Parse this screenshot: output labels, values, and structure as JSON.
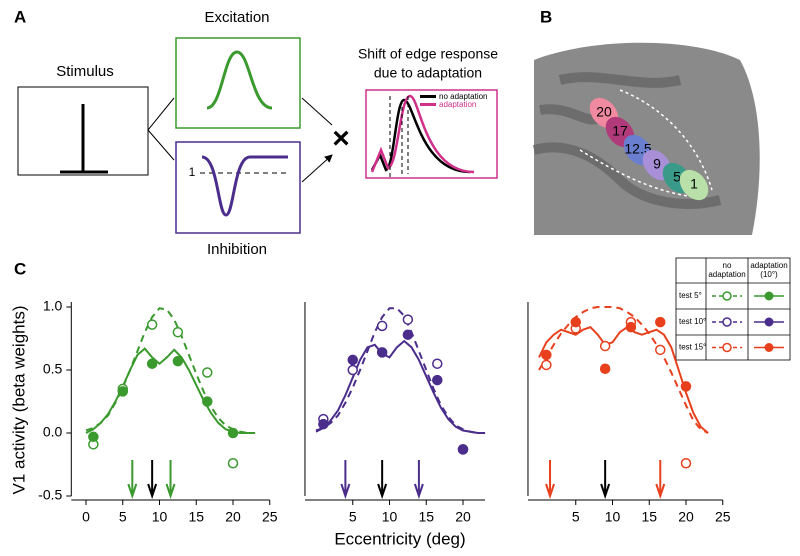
{
  "panel_a": {
    "label": "A",
    "stimulus": "Stimulus",
    "excitation": "Excitation",
    "inhibition": "Inhibition",
    "inhibition_level": "1",
    "operator": "×",
    "shift_title_1": "Shift of edge response",
    "shift_title_2": "due to adaptation",
    "legend_no": "no adaptation",
    "legend_ad": "adaptation"
  },
  "panel_b": {
    "label": "B",
    "regions": [
      "20",
      "17",
      "12.5",
      "9",
      "5",
      "1"
    ]
  },
  "panel_c": {
    "label": "C",
    "ylabel": "V1 activity (beta weights)",
    "xlabel": "Eccentricity (deg)",
    "legend": {
      "columns": [
        "no adaptation",
        "adaptation (10°)"
      ],
      "rows": [
        "test 5°",
        "test 10°",
        "test 15°"
      ]
    }
  },
  "chart_data": [
    {
      "type": "line",
      "color": "#3a9a2e",
      "xlim": [
        -2,
        25
      ],
      "xticks": [
        0,
        5,
        10,
        15,
        20,
        25
      ],
      "ylim": [
        -0.5,
        1.0
      ],
      "yticks": [
        -0.5,
        {
          "value": 0,
          "label": "0.0"
        },
        0.5,
        {
          "value": 1,
          "label": "1.0"
        }
      ],
      "curve_x": [
        0,
        1,
        2,
        3,
        4,
        5,
        6,
        7,
        8,
        9,
        10,
        11,
        12,
        13,
        14,
        15,
        16,
        17,
        18,
        19,
        20,
        21,
        22,
        23
      ],
      "series": [
        {
          "style": "dashed",
          "values": [
            0.02,
            0.04,
            0.08,
            0.14,
            0.24,
            0.36,
            0.5,
            0.65,
            0.8,
            0.92,
            0.99,
            0.98,
            0.9,
            0.77,
            0.62,
            0.47,
            0.33,
            0.21,
            0.12,
            0.06,
            0.03,
            0.01,
            0,
            0
          ]
        },
        {
          "style": "solid",
          "values": [
            0,
            0.03,
            0.08,
            0.15,
            0.25,
            0.37,
            0.5,
            0.62,
            0.67,
            0.6,
            0.55,
            0.6,
            0.66,
            0.6,
            0.5,
            0.38,
            0.26,
            0.16,
            0.08,
            0.03,
            0.01,
            0,
            0,
            0
          ]
        }
      ],
      "points": [
        {
          "fill": "open",
          "x": [
            1,
            5,
            9,
            12.5,
            16.5,
            20
          ],
          "values": [
            -0.09,
            0.35,
            0.86,
            0.8,
            0.48,
            -0.24
          ]
        },
        {
          "fill": "filled",
          "x": [
            1,
            5,
            9,
            12.5,
            16.5,
            20
          ],
          "values": [
            -0.03,
            0.33,
            0.55,
            0.57,
            0.25,
            0
          ]
        }
      ],
      "arrows": {
        "x": [
          6.3,
          9,
          11.5
        ],
        "colors": [
          "#3a9a2e",
          "#000000",
          "#3a9a2e"
        ]
      }
    },
    {
      "type": "line",
      "color": "#4b2d8c",
      "xlim": [
        -1.5,
        23
      ],
      "xticks": [
        5,
        10,
        15,
        20
      ],
      "ylim": [
        -0.5,
        1.0
      ],
      "curve_x": [
        0,
        1,
        2,
        3,
        4,
        5,
        6,
        7,
        8,
        9,
        10,
        11,
        12,
        13,
        14,
        15,
        16,
        17,
        18,
        19,
        20,
        21,
        22,
        23
      ],
      "series": [
        {
          "style": "dashed",
          "values": [
            0.02,
            0.04,
            0.08,
            0.14,
            0.24,
            0.36,
            0.5,
            0.65,
            0.8,
            0.92,
            0.99,
            0.99,
            0.93,
            0.8,
            0.65,
            0.5,
            0.35,
            0.22,
            0.13,
            0.06,
            0.03,
            0.01,
            0,
            0
          ]
        },
        {
          "style": "solid",
          "values": [
            0.01,
            0.04,
            0.1,
            0.18,
            0.3,
            0.44,
            0.58,
            0.68,
            0.7,
            0.63,
            0.6,
            0.68,
            0.73,
            0.68,
            0.58,
            0.45,
            0.32,
            0.2,
            0.11,
            0.05,
            0.02,
            0.01,
            0,
            0
          ]
        }
      ],
      "points": [
        {
          "fill": "open",
          "x": [
            1,
            5,
            9,
            12.5,
            16.5,
            20
          ],
          "values": [
            0.11,
            0.5,
            0.85,
            0.9,
            0.55,
            -0.13
          ]
        },
        {
          "fill": "filled",
          "x": [
            1,
            5,
            9,
            12.5,
            16.5,
            20
          ],
          "values": [
            0.07,
            0.58,
            0.64,
            0.78,
            0.42,
            -0.13
          ]
        }
      ],
      "arrows": {
        "x": [
          4,
          9,
          14
        ],
        "colors": [
          "#4b2d8c",
          "#000000",
          "#4b2d8c"
        ]
      }
    },
    {
      "type": "line",
      "color": "#e8401c",
      "xlim": [
        -1.5,
        25
      ],
      "xticks": [
        5,
        10,
        15,
        20,
        25
      ],
      "ylim": [
        -0.5,
        1.0
      ],
      "curve_x": [
        0,
        1,
        2,
        3,
        4,
        5,
        6,
        7,
        8,
        9,
        10,
        11,
        12,
        13,
        14,
        15,
        16,
        17,
        18,
        19,
        20,
        21,
        22,
        23
      ],
      "series": [
        {
          "style": "dashed",
          "values": [
            0.5,
            0.6,
            0.7,
            0.79,
            0.86,
            0.92,
            0.96,
            0.99,
            1,
            1,
            1,
            0.99,
            0.96,
            0.92,
            0.86,
            0.79,
            0.7,
            0.6,
            0.48,
            0.35,
            0.22,
            0.1,
            0.03,
            0
          ]
        },
        {
          "style": "solid",
          "values": [
            0.6,
            0.72,
            0.78,
            0.82,
            0.8,
            0.78,
            0.82,
            0.84,
            0.78,
            0.7,
            0.72,
            0.8,
            0.84,
            0.8,
            0.78,
            0.8,
            0.82,
            0.78,
            0.68,
            0.5,
            0.32,
            0.16,
            0.05,
            0
          ]
        }
      ],
      "points": [
        {
          "fill": "open",
          "x": [
            1,
            5,
            9,
            12.5,
            16.5,
            20
          ],
          "values": [
            0.54,
            0.83,
            0.69,
            0.88,
            0.66,
            -0.24
          ]
        },
        {
          "fill": "filled",
          "x": [
            1,
            5,
            9,
            12.5,
            16.5,
            20
          ],
          "values": [
            0.62,
            0.88,
            0.51,
            0.84,
            0.88,
            0.37
          ]
        }
      ],
      "arrows": {
        "x": [
          1.5,
          9,
          16.5
        ],
        "colors": [
          "#e8401c",
          "#000000",
          "#e8401c"
        ]
      }
    }
  ]
}
